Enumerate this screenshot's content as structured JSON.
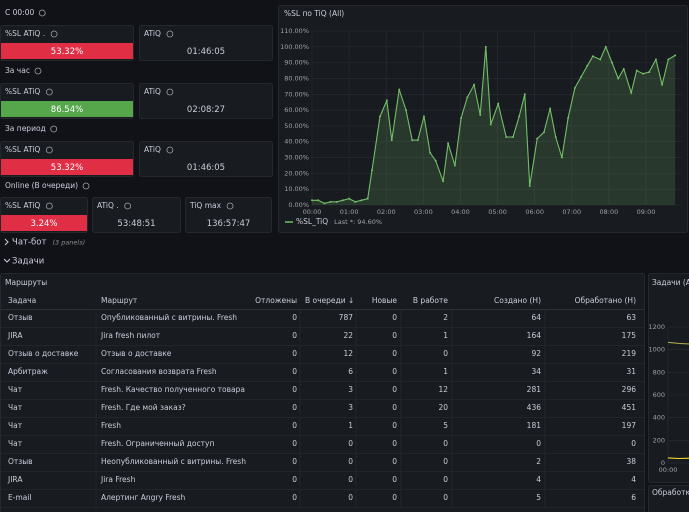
{
  "stat_groups": [
    {
      "title": "С 00:00",
      "panels": [
        {
          "title": "%SL ATiQ .",
          "value": "53.32%",
          "color": "#e02f44"
        },
        {
          "title": "ATiQ",
          "value": "01:46:05"
        }
      ]
    },
    {
      "title": "За час",
      "panels": [
        {
          "title": "%SL ATiQ",
          "value": "86.54%",
          "color": "#56a64b"
        },
        {
          "title": "ATiQ",
          "value": "02:08:27"
        }
      ]
    },
    {
      "title": "За период",
      "panels": [
        {
          "title": "%SL ATiQ",
          "value": "53.32%",
          "color": "#e02f44"
        },
        {
          "title": "ATiQ",
          "value": "01:46:05"
        }
      ]
    },
    {
      "title": "Online (В очереди)",
      "panels": [
        {
          "title": "%SL ATiQ",
          "value": "3.24%",
          "color": "#e02f44"
        },
        {
          "title": "ATiQ .",
          "value": "53:48:51"
        },
        {
          "title": "TiQ max",
          "value": "136:57:47"
        }
      ]
    }
  ],
  "chart_data": [
    {
      "type": "line",
      "title": "%SL по TiQ (All)",
      "x": [
        0,
        10,
        20,
        30,
        40,
        50,
        60,
        70,
        80,
        90,
        97,
        110,
        121,
        129,
        141,
        152,
        162,
        171,
        181,
        191,
        200,
        212,
        220,
        231,
        241,
        251,
        262,
        272,
        281,
        289,
        301,
        314,
        325,
        335,
        344,
        352,
        364,
        375,
        385,
        394,
        404,
        414,
        425,
        435,
        445,
        454,
        466,
        475,
        485,
        495,
        504,
        516,
        525,
        535,
        545,
        556,
        566,
        576,
        587
      ],
      "series": [
        {
          "name": "%SL_TiQ",
          "color": "#73bf69",
          "values": [
            3,
            3,
            1,
            2,
            2,
            3,
            4,
            2,
            3,
            4,
            22,
            56,
            66,
            41,
            73,
            60,
            41,
            41,
            56,
            33,
            28,
            15,
            39,
            25,
            55,
            68,
            76,
            57,
            100,
            51,
            64,
            43,
            43,
            56,
            70,
            12,
            42,
            46,
            61,
            43,
            30,
            55,
            74,
            81,
            88,
            94,
            92,
            100,
            90,
            80,
            86,
            71,
            85,
            83,
            84,
            92,
            76,
            92,
            94.6
          ]
        }
      ],
      "legend_stat": "Last *: 94.60%",
      "legend": "bottom-left",
      "xlim": [
        0,
        598
      ],
      "ylim": [
        0,
        110
      ],
      "xticks": [
        {
          "value": 0,
          "label": "00:00"
        },
        {
          "value": 60,
          "label": "01:00"
        },
        {
          "value": 120,
          "label": "02:00"
        },
        {
          "value": 180,
          "label": "03:00"
        },
        {
          "value": 240,
          "label": "04:00"
        },
        {
          "value": 300,
          "label": "05:00"
        },
        {
          "value": 360,
          "label": "06:00"
        },
        {
          "value": 420,
          "label": "07:00"
        },
        {
          "value": 480,
          "label": "08:00"
        },
        {
          "value": 540,
          "label": "09:00"
        }
      ],
      "yticks": [
        {
          "value": 0,
          "label": "0.00%"
        },
        {
          "value": 10,
          "label": "10.00%"
        },
        {
          "value": 20,
          "label": "20.00%"
        },
        {
          "value": 30,
          "label": "30.00%"
        },
        {
          "value": 40,
          "label": "40.00%"
        },
        {
          "value": 50,
          "label": "50.00%"
        },
        {
          "value": 60,
          "label": "60.00%"
        },
        {
          "value": 70,
          "label": "70.00%"
        },
        {
          "value": 80,
          "label": "80.00%"
        },
        {
          "value": 90,
          "label": "90.00%"
        },
        {
          "value": 100,
          "label": "100.00%"
        },
        {
          "value": 110,
          "label": "110.00%"
        }
      ],
      "grid": true
    },
    {
      "type": "line",
      "title": "Задачи (Al",
      "x": [
        0,
        5,
        10,
        15
      ],
      "series": [
        {
          "color": "#a8a64a",
          "values": [
            1065,
            1055,
            1050,
            1040
          ]
        },
        {
          "color": "#fade2a",
          "values": [
            45,
            40,
            42,
            38
          ]
        }
      ],
      "xlim": [
        0,
        60
      ],
      "ylim": [
        0,
        1200
      ],
      "xticks": [
        {
          "value": 0,
          "label": "00:00"
        }
      ],
      "yticks": [
        0,
        200,
        400,
        600,
        800,
        1000,
        1200
      ],
      "grid": true
    }
  ],
  "rows": [
    {
      "title": "Чат-бот",
      "note": "(3 panels)"
    },
    {
      "title": "Задачи"
    }
  ],
  "table": {
    "title": "Маршруты",
    "columns": [
      "Задача",
      "Маршрут",
      "Отложены",
      "В очереди ↓",
      "Новые",
      "В работе",
      "Создано (Н)",
      "Обработано (Н)"
    ],
    "rows": [
      [
        "Отзыв",
        "Опубликованный с витрины. Fresh",
        0,
        787,
        0,
        2,
        64,
        63
      ],
      [
        "JIRA",
        "Jira fresh пилот",
        0,
        22,
        0,
        1,
        164,
        175
      ],
      [
        "Отзыв о доставке",
        "Отзыв о доставке",
        0,
        12,
        0,
        0,
        92,
        219
      ],
      [
        "Арбитраж",
        "Согласования возврата Fresh",
        0,
        6,
        0,
        1,
        34,
        31
      ],
      [
        "Чат",
        "Fresh. Качество полученного товара",
        0,
        3,
        0,
        12,
        281,
        296
      ],
      [
        "Чат",
        "Fresh. Где мой заказ?",
        0,
        3,
        0,
        20,
        436,
        451
      ],
      [
        "Чат",
        "Fresh",
        0,
        1,
        0,
        5,
        181,
        197
      ],
      [
        "Чат",
        "Fresh. Ограниченный доступ",
        0,
        0,
        0,
        0,
        0,
        0
      ],
      [
        "Отзыв",
        "Неопубликованный с витрины. Fresh",
        0,
        0,
        0,
        0,
        2,
        38
      ],
      [
        "JIRA",
        "Jira Fresh",
        0,
        0,
        0,
        0,
        4,
        4
      ],
      [
        "E-mail",
        "Алертинг Angry Fresh",
        0,
        0,
        0,
        0,
        5,
        6
      ]
    ]
  },
  "side_panel_title": "Обработка"
}
